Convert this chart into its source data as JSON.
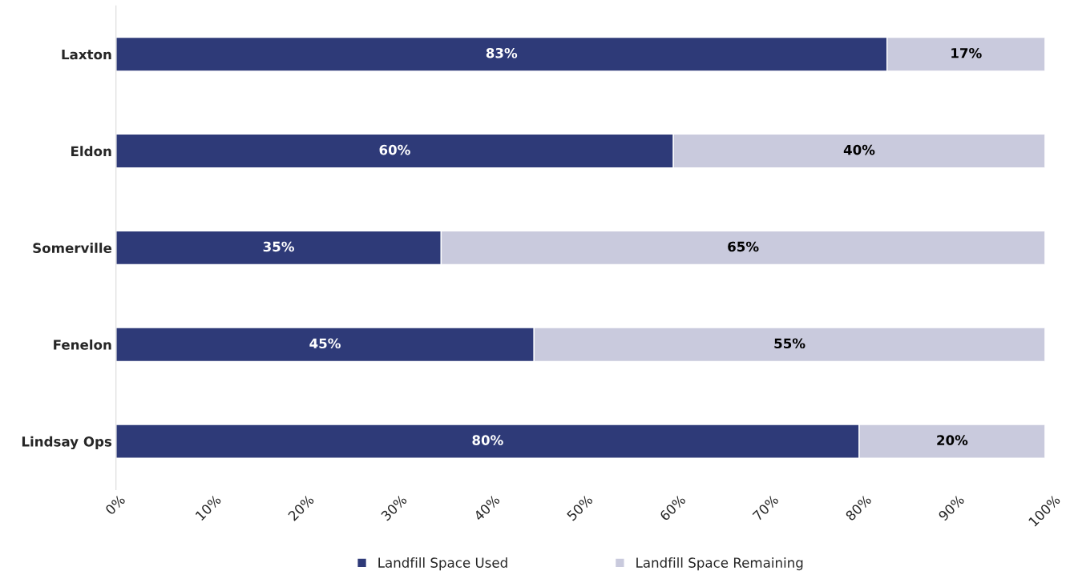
{
  "chart_data": {
    "type": "bar",
    "orientation": "horizontal",
    "stacked": true,
    "categories": [
      "Laxton",
      "Eldon",
      "Somerville",
      "Fenelon",
      "Lindsay Ops"
    ],
    "series": [
      {
        "name": "Landfill Space Used",
        "color": "#2e3a78",
        "values": [
          83,
          60,
          35,
          45,
          80
        ],
        "value_labels": [
          "83%",
          "60%",
          "35%",
          "45%",
          "80%"
        ]
      },
      {
        "name": "Landfill Space Remaining",
        "color": "#c9cadd",
        "values": [
          17,
          40,
          65,
          55,
          20
        ],
        "value_labels": [
          "17%",
          "40%",
          "65%",
          "55%",
          "20%"
        ]
      }
    ],
    "xlim": [
      0,
      100
    ],
    "xticks": [
      {
        "value": 0,
        "label": "0%"
      },
      {
        "value": 10,
        "label": "10%"
      },
      {
        "value": 20,
        "label": "20%"
      },
      {
        "value": 30,
        "label": "30%"
      },
      {
        "value": 40,
        "label": "40%"
      },
      {
        "value": 50,
        "label": "50%"
      },
      {
        "value": 60,
        "label": "60%"
      },
      {
        "value": 70,
        "label": "70%"
      },
      {
        "value": 80,
        "label": "80%"
      },
      {
        "value": 90,
        "label": "90%"
      },
      {
        "value": 100,
        "label": "100%"
      }
    ],
    "legend": "bottom",
    "grid": false
  }
}
